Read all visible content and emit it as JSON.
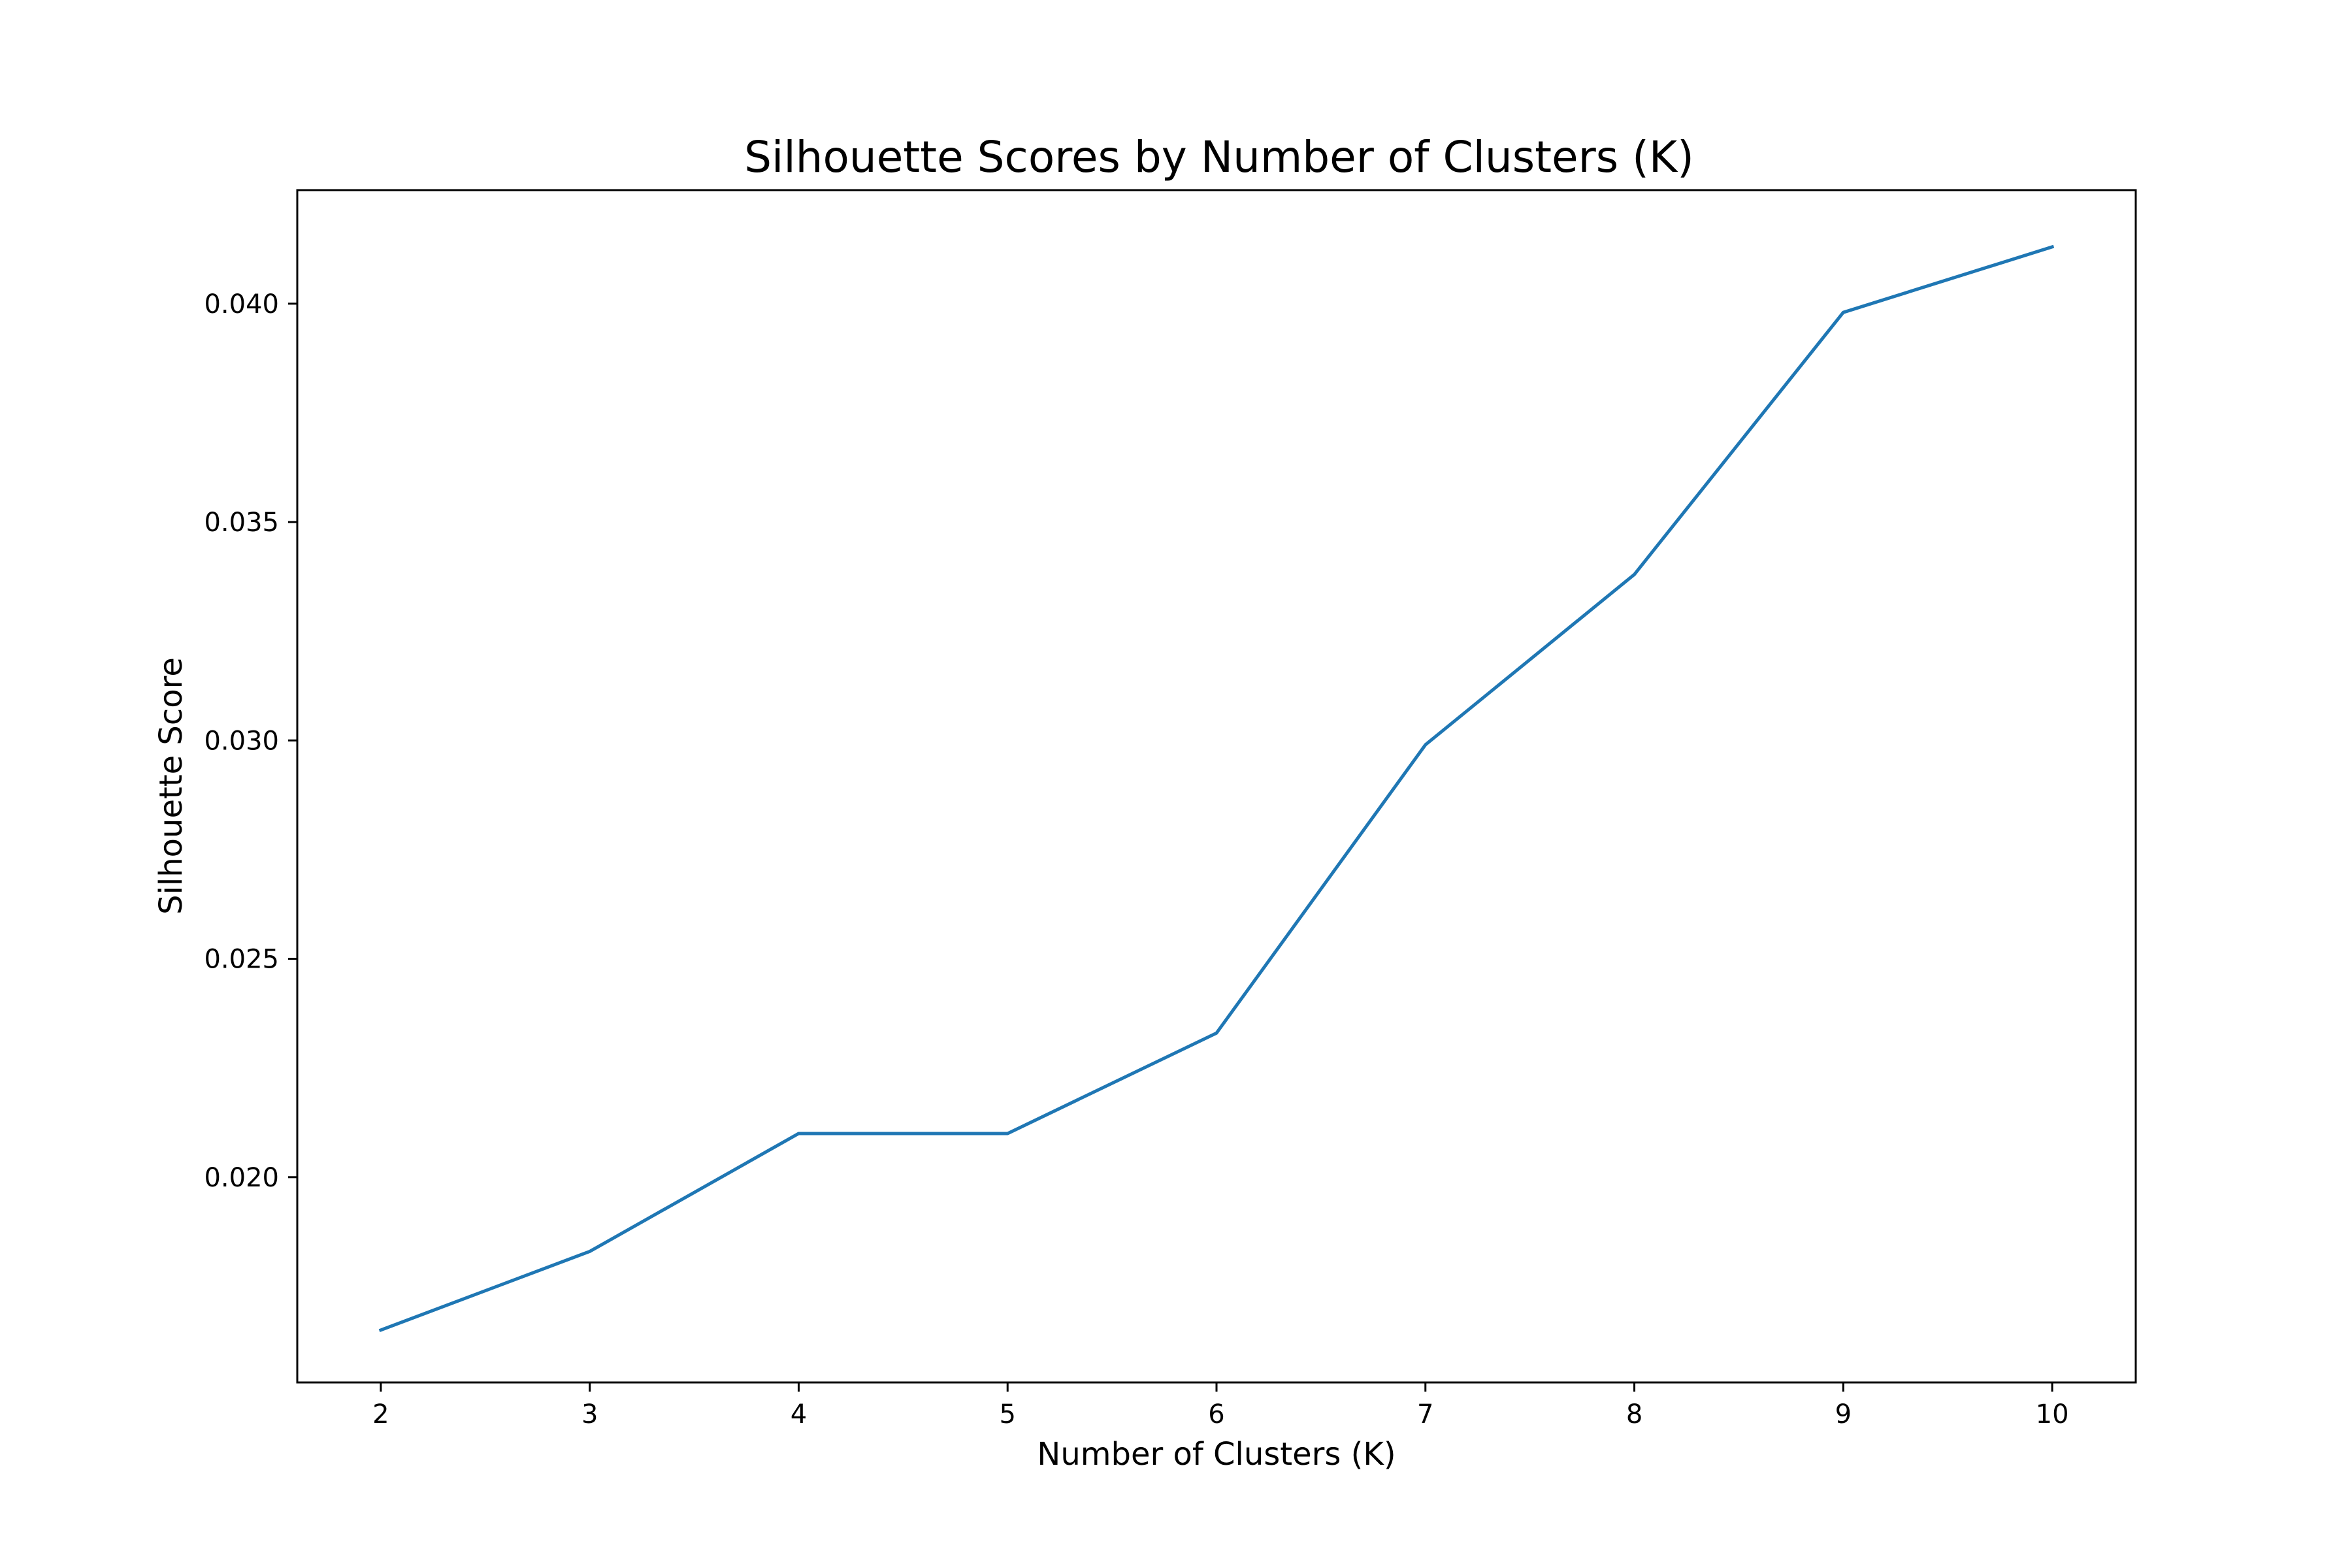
{
  "chart_data": {
    "type": "line",
    "title": "Silhouette Scores by Number of Clusters (K)",
    "xlabel": "Number of Clusters (K)",
    "ylabel": "Silhouette Score",
    "x": [
      2,
      3,
      4,
      5,
      6,
      7,
      8,
      9,
      10
    ],
    "series": [
      {
        "values": [
          0.0165,
          0.0183,
          0.021,
          0.021,
          0.0233,
          0.0299,
          0.0338,
          0.0398,
          0.0413
        ],
        "color": "#1f77b4"
      }
    ],
    "xticks": [
      "2",
      "3",
      "4",
      "5",
      "6",
      "7",
      "8",
      "9",
      "10"
    ],
    "yticks": [
      "0.020",
      "0.025",
      "0.030",
      "0.035",
      "0.040"
    ],
    "xlim": [
      1.6,
      10.4
    ],
    "ylim": [
      0.0153,
      0.0426
    ],
    "grid": false,
    "legend": "none"
  }
}
